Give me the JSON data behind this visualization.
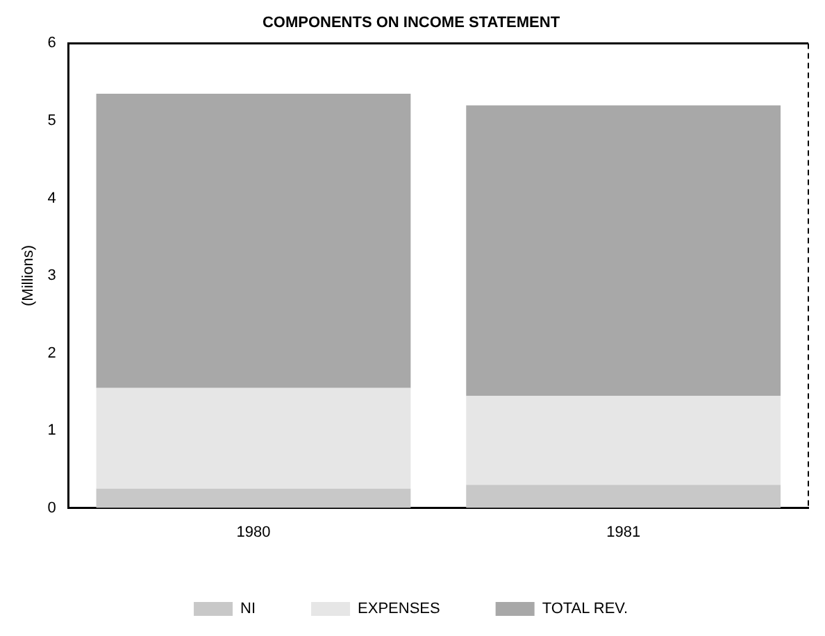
{
  "chart_data": {
    "type": "bar",
    "title": "COMPONENTS ON INCOME STATEMENT",
    "ylabel": "(Millions)",
    "categories": [
      "1980",
      "1981"
    ],
    "stacked": true,
    "series": [
      {
        "name": "NI",
        "color": "#c8c8c8",
        "values": [
          0.25,
          0.3
        ]
      },
      {
        "name": "EXPENSES",
        "color": "#e6e6e6",
        "values": [
          1.3,
          1.15
        ]
      },
      {
        "name": "TOTAL REV.",
        "color": "#a8a8a8",
        "values": [
          3.8,
          3.75
        ]
      }
    ],
    "ylim": [
      0,
      6
    ],
    "yticks": [
      0,
      1,
      2,
      3,
      4,
      5,
      6
    ],
    "grid": false,
    "legend": "bottom"
  }
}
